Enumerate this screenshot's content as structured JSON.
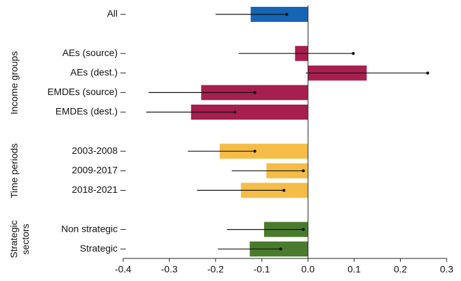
{
  "chart_data": {
    "type": "bar",
    "orientation": "horizontal",
    "xlim": [
      -0.4,
      0.3
    ],
    "xticks": [
      {
        "value": -0.4,
        "label": "-0.4"
      },
      {
        "value": -0.3,
        "label": "-0.3"
      },
      {
        "value": -0.2,
        "label": "-0.2"
      },
      {
        "value": -0.1,
        "label": "-0.1"
      },
      {
        "value": 0,
        "label": "0.0"
      },
      {
        "value": 0.1,
        "label": "0.1"
      },
      {
        "value": 0.2,
        "label": "0.2"
      },
      {
        "value": 0.3,
        "label": "0.3"
      }
    ],
    "groups": [
      {
        "name": null,
        "color": "#1565b4",
        "categories": [
          "All"
        ],
        "values": [
          -0.124
        ],
        "low": [
          -0.2
        ],
        "high": [
          -0.046
        ]
      },
      {
        "name": [
          "Income groups"
        ],
        "color": "#a61f4f",
        "categories": [
          "AEs (source)",
          "AEs (dest.)",
          "EMDEs (source)",
          "EMDEs (dest.)"
        ],
        "values": [
          -0.028,
          0.127,
          -0.231,
          -0.253
        ],
        "low": [
          -0.15,
          -0.005,
          -0.345,
          -0.35
        ],
        "high": [
          0.098,
          0.259,
          -0.115,
          -0.158
        ]
      },
      {
        "name": [
          "Time periods"
        ],
        "color": "#f5bd47",
        "categories": [
          "2003-2008",
          "2009-2017",
          "2018-2021"
        ],
        "values": [
          -0.191,
          -0.09,
          -0.145
        ],
        "low": [
          -0.26,
          -0.165,
          -0.24
        ],
        "high": [
          -0.115,
          -0.01,
          -0.052
        ]
      },
      {
        "name": [
          "Strategic",
          "sectors"
        ],
        "color": "#4a7a2b",
        "categories": [
          "Non strategic",
          "Strategic"
        ],
        "values": [
          -0.095,
          -0.126
        ],
        "low": [
          -0.175,
          -0.195
        ],
        "high": [
          -0.01,
          -0.059
        ]
      }
    ]
  }
}
